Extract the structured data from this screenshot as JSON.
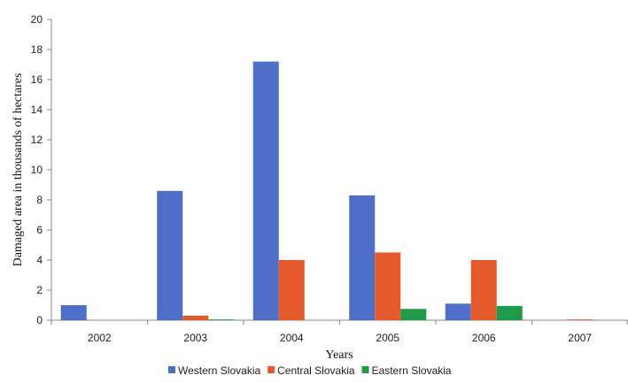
{
  "chart_data": {
    "type": "bar",
    "categories": [
      "2002",
      "2003",
      "2004",
      "2005",
      "2006",
      "2007"
    ],
    "series": [
      {
        "name": "Western Slovakia",
        "color": "#4f6ec8",
        "values": [
          1.0,
          8.6,
          17.2,
          8.3,
          1.1,
          0.0
        ]
      },
      {
        "name": "Central Slovakia",
        "color": "#e45a2b",
        "values": [
          0.0,
          0.3,
          4.0,
          4.5,
          4.0,
          0.05
        ]
      },
      {
        "name": "Eastern Slovakia",
        "color": "#1f9a48",
        "values": [
          0.0,
          0.05,
          0.0,
          0.75,
          0.95,
          0.0
        ]
      }
    ],
    "yticks": [
      "0",
      "2",
      "4",
      "6",
      "8",
      "10",
      "12",
      "14",
      "16",
      "18",
      "20"
    ],
    "ylim": [
      0,
      20
    ],
    "xlabel": "Years",
    "ylabel": "Damaged area in thousands of hectares",
    "legend_position": "bottom",
    "grid": false
  }
}
